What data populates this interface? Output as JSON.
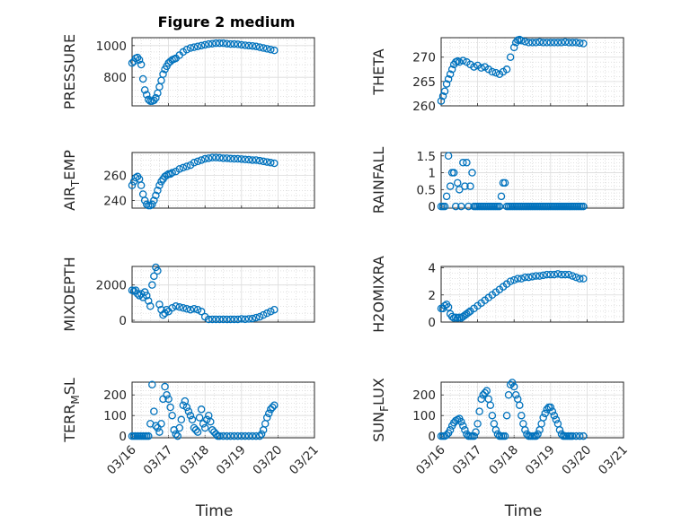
{
  "figure_title": "Figure 2 medium",
  "colors": {
    "series": "#0072bd",
    "axis": "#262626",
    "grid": "#dcdcdc"
  },
  "chart_data": [
    {
      "id": "pressure",
      "type": "scatter",
      "ylabel": "PRESSURE",
      "xlabel": "",
      "ylim": [
        620,
        1050
      ],
      "yticks": [
        800,
        1000
      ],
      "yticklabels": [
        "800",
        "1000"
      ],
      "xlim": [
        0,
        5
      ],
      "xticks": [
        0,
        1,
        2,
        3,
        4,
        5
      ],
      "xticklabels": [],
      "x": [
        0,
        0.05,
        0.1,
        0.15,
        0.2,
        0.25,
        0.3,
        0.35,
        0.4,
        0.45,
        0.5,
        0.55,
        0.6,
        0.65,
        0.7,
        0.75,
        0.8,
        0.85,
        0.9,
        0.95,
        1,
        1.05,
        1.1,
        1.15,
        1.2,
        1.3,
        1.4,
        1.5,
        1.6,
        1.7,
        1.8,
        1.9,
        2,
        2.1,
        2.2,
        2.3,
        2.4,
        2.5,
        2.6,
        2.7,
        2.8,
        2.9,
        3,
        3.1,
        3.2,
        3.3,
        3.4,
        3.5,
        3.6,
        3.7,
        3.8,
        3.9
      ],
      "values": [
        890,
        900,
        920,
        925,
        910,
        880,
        790,
        720,
        690,
        660,
        650,
        650,
        655,
        670,
        700,
        740,
        780,
        820,
        850,
        870,
        890,
        900,
        910,
        915,
        920,
        940,
        960,
        975,
        985,
        990,
        995,
        1000,
        1005,
        1010,
        1012,
        1015,
        1015,
        1015,
        1012,
        1010,
        1010,
        1008,
        1005,
        1002,
        1000,
        998,
        995,
        990,
        985,
        980,
        975,
        970
      ]
    },
    {
      "id": "theta",
      "type": "scatter",
      "ylabel": "THETA",
      "xlabel": "",
      "ylim": [
        260,
        274
      ],
      "yticks": [
        260,
        265,
        270
      ],
      "yticklabels": [
        "260",
        "265",
        "270"
      ],
      "xlim": [
        0,
        5
      ],
      "xticks": [
        0,
        1,
        2,
        3,
        4,
        5
      ],
      "xticklabels": [],
      "x": [
        0,
        0.05,
        0.1,
        0.15,
        0.2,
        0.25,
        0.3,
        0.35,
        0.4,
        0.45,
        0.5,
        0.6,
        0.7,
        0.8,
        0.9,
        1,
        1.1,
        1.2,
        1.3,
        1.4,
        1.5,
        1.6,
        1.7,
        1.8,
        1.9,
        2,
        2.05,
        2.1,
        2.15,
        2.2,
        2.3,
        2.4,
        2.5,
        2.6,
        2.7,
        2.8,
        2.9,
        3,
        3.1,
        3.2,
        3.3,
        3.4,
        3.5,
        3.6,
        3.7,
        3.8,
        3.9
      ],
      "values": [
        261,
        262,
        263,
        264.5,
        265.5,
        266.5,
        267.5,
        268.5,
        269,
        269.2,
        269,
        269.3,
        269,
        268.5,
        268,
        268.3,
        267.8,
        268,
        267.5,
        267,
        266.8,
        266.5,
        267,
        267.5,
        270,
        272,
        273,
        273.5,
        273.6,
        273.4,
        273.2,
        273,
        273,
        273,
        273.1,
        273,
        273,
        273,
        273,
        273,
        273,
        273.1,
        273,
        273,
        273,
        272.9,
        272.8
      ]
    },
    {
      "id": "air_temp",
      "type": "scatter",
      "ylabel": "AIR_TEMP",
      "ylabel_main": "AIR",
      "ylabel_sub": "T",
      "ylabel_rest": "EMP",
      "xlabel": "",
      "ylim": [
        234,
        278
      ],
      "yticks": [
        240,
        260
      ],
      "yticklabels": [
        "240",
        "260"
      ],
      "xlim": [
        0,
        5
      ],
      "xticks": [
        0,
        1,
        2,
        3,
        4,
        5
      ],
      "xticklabels": [],
      "x": [
        0,
        0.05,
        0.1,
        0.15,
        0.2,
        0.25,
        0.3,
        0.35,
        0.4,
        0.45,
        0.5,
        0.55,
        0.6,
        0.65,
        0.7,
        0.75,
        0.8,
        0.85,
        0.9,
        0.95,
        1,
        1.05,
        1.1,
        1.2,
        1.3,
        1.4,
        1.5,
        1.6,
        1.7,
        1.8,
        1.9,
        2,
        2.1,
        2.2,
        2.3,
        2.4,
        2.5,
        2.6,
        2.7,
        2.8,
        2.9,
        3,
        3.1,
        3.2,
        3.3,
        3.4,
        3.5,
        3.6,
        3.7,
        3.8,
        3.9
      ],
      "values": [
        252,
        255,
        258,
        259,
        257,
        252,
        245,
        240,
        237,
        236,
        236,
        237,
        240,
        244,
        248,
        252,
        255,
        257,
        259,
        260,
        261,
        261,
        262,
        263,
        265,
        266,
        267,
        268,
        270,
        271,
        272,
        273,
        273.5,
        274,
        274,
        273.8,
        273.5,
        273.5,
        273.2,
        273,
        273,
        272.8,
        272.5,
        272.3,
        272,
        272,
        271.5,
        271,
        270.5,
        270,
        269.5
      ]
    },
    {
      "id": "rainfall",
      "type": "scatter",
      "ylabel": "RAINFALL",
      "xlabel": "",
      "ylim": [
        -0.05,
        1.6
      ],
      "yticks": [
        0,
        0.5,
        1,
        1.5
      ],
      "yticklabels": [
        "0",
        "0.5",
        "1",
        "1.5"
      ],
      "xlim": [
        0,
        5
      ],
      "xticks": [
        0,
        1,
        2,
        3,
        4,
        5
      ],
      "xticklabels": [],
      "x": [
        0,
        0.05,
        0.1,
        0.15,
        0.2,
        0.25,
        0.3,
        0.35,
        0.4,
        0.45,
        0.5,
        0.55,
        0.6,
        0.65,
        0.7,
        0.75,
        0.8,
        0.85,
        0.9,
        0.95,
        1,
        1.05,
        1.1,
        1.15,
        1.2,
        1.25,
        1.3,
        1.35,
        1.4,
        1.45,
        1.5,
        1.55,
        1.6,
        1.65,
        1.7,
        1.75,
        1.8,
        1.85,
        1.9,
        1.95,
        2,
        2.05,
        2.1,
        2.15,
        2.2,
        2.25,
        2.3,
        2.35,
        2.4,
        2.45,
        2.5,
        2.55,
        2.6,
        2.65,
        2.7,
        2.75,
        2.8,
        2.85,
        2.9,
        2.95,
        3,
        3.05,
        3.1,
        3.15,
        3.2,
        3.25,
        3.3,
        3.35,
        3.4,
        3.45,
        3.5,
        3.55,
        3.6,
        3.65,
        3.7,
        3.75,
        3.8,
        3.85,
        3.9
      ],
      "values": [
        0,
        0,
        0,
        0.3,
        1.5,
        0.6,
        1.0,
        1.0,
        0,
        0.7,
        0.5,
        0,
        1.3,
        0.6,
        1.3,
        0,
        0.6,
        1.0,
        0,
        0,
        0,
        0,
        0,
        0,
        0,
        0,
        0,
        0,
        0,
        0,
        0,
        0,
        0,
        0.3,
        0.7,
        0.7,
        0,
        0,
        0,
        0,
        0,
        0,
        0,
        0,
        0,
        0,
        0,
        0,
        0,
        0,
        0,
        0,
        0,
        0,
        0,
        0,
        0,
        0,
        0,
        0,
        0,
        0,
        0,
        0,
        0,
        0,
        0,
        0,
        0,
        0,
        0,
        0,
        0,
        0,
        0,
        0,
        0,
        0,
        0
      ]
    },
    {
      "id": "mixdepth",
      "type": "scatter",
      "ylabel": "MIXDEPTH",
      "xlabel": "",
      "ylim": [
        -100,
        3050
      ],
      "yticks": [
        0,
        2000
      ],
      "yticklabels": [
        "0",
        "2000"
      ],
      "xlim": [
        0,
        5
      ],
      "xticks": [
        0,
        1,
        2,
        3,
        4,
        5
      ],
      "xticklabels": [],
      "x": [
        0,
        0.05,
        0.1,
        0.15,
        0.2,
        0.25,
        0.3,
        0.35,
        0.4,
        0.45,
        0.5,
        0.55,
        0.6,
        0.65,
        0.7,
        0.75,
        0.8,
        0.85,
        0.9,
        0.95,
        1,
        1.1,
        1.2,
        1.3,
        1.4,
        1.5,
        1.6,
        1.7,
        1.8,
        1.9,
        2,
        2.1,
        2.2,
        2.3,
        2.4,
        2.5,
        2.6,
        2.7,
        2.8,
        2.9,
        3,
        3.1,
        3.2,
        3.3,
        3.4,
        3.5,
        3.6,
        3.7,
        3.8,
        3.9
      ],
      "values": [
        1700,
        1650,
        1700,
        1500,
        1400,
        1500,
        1300,
        1600,
        1400,
        1100,
        800,
        2000,
        2500,
        3000,
        2800,
        900,
        600,
        300,
        400,
        600,
        500,
        700,
        800,
        750,
        700,
        650,
        600,
        650,
        600,
        500,
        200,
        50,
        50,
        50,
        50,
        50,
        50,
        50,
        50,
        50,
        80,
        60,
        80,
        100,
        150,
        200,
        300,
        400,
        500,
        600
      ]
    },
    {
      "id": "h2omixra",
      "type": "scatter",
      "ylabel": "H2OMIXRA",
      "xlabel": "",
      "ylim": [
        0,
        4.1
      ],
      "yticks": [
        0,
        2,
        4
      ],
      "yticklabels": [
        "0",
        "2",
        "4"
      ],
      "xlim": [
        0,
        5
      ],
      "xticks": [
        0,
        1,
        2,
        3,
        4,
        5
      ],
      "xticklabels": [],
      "x": [
        0,
        0.05,
        0.1,
        0.15,
        0.2,
        0.25,
        0.3,
        0.35,
        0.4,
        0.45,
        0.5,
        0.55,
        0.6,
        0.65,
        0.7,
        0.75,
        0.8,
        0.9,
        1,
        1.1,
        1.2,
        1.3,
        1.4,
        1.5,
        1.6,
        1.7,
        1.8,
        1.9,
        2,
        2.1,
        2.2,
        2.3,
        2.4,
        2.5,
        2.6,
        2.7,
        2.8,
        2.9,
        3,
        3.1,
        3.2,
        3.3,
        3.4,
        3.5,
        3.6,
        3.7,
        3.8,
        3.9
      ],
      "values": [
        1.0,
        1.0,
        1.2,
        1.3,
        1.1,
        0.6,
        0.4,
        0.3,
        0.35,
        0.3,
        0.35,
        0.3,
        0.4,
        0.5,
        0.6,
        0.7,
        0.8,
        1.0,
        1.2,
        1.4,
        1.6,
        1.8,
        2.0,
        2.2,
        2.4,
        2.6,
        2.8,
        3.0,
        3.1,
        3.2,
        3.2,
        3.3,
        3.3,
        3.35,
        3.4,
        3.4,
        3.45,
        3.5,
        3.5,
        3.5,
        3.55,
        3.5,
        3.5,
        3.5,
        3.4,
        3.3,
        3.2,
        3.2
      ]
    },
    {
      "id": "terr_msl",
      "type": "scatter",
      "ylabel": "TERR_MSL",
      "ylabel_main": "TERR",
      "ylabel_sub": "M",
      "ylabel_rest": "SL",
      "xlabel": "Time",
      "ylim": [
        -8,
        262
      ],
      "yticks": [
        0,
        100,
        200
      ],
      "yticklabels": [
        "0",
        "100",
        "200"
      ],
      "xlim": [
        0,
        5
      ],
      "xticks": [
        0,
        1,
        2,
        3,
        4,
        5
      ],
      "xticklabels": [
        "03/16",
        "03/17",
        "03/18",
        "03/19",
        "03/20",
        "03/21"
      ],
      "x": [
        0,
        0.05,
        0.1,
        0.15,
        0.2,
        0.25,
        0.3,
        0.35,
        0.4,
        0.45,
        0.5,
        0.55,
        0.6,
        0.65,
        0.7,
        0.75,
        0.8,
        0.85,
        0.9,
        0.95,
        1,
        1.05,
        1.1,
        1.15,
        1.2,
        1.25,
        1.3,
        1.35,
        1.4,
        1.45,
        1.5,
        1.55,
        1.6,
        1.65,
        1.7,
        1.75,
        1.8,
        1.85,
        1.9,
        1.95,
        2,
        2.05,
        2.1,
        2.15,
        2.2,
        2.25,
        2.3,
        2.35,
        2.4,
        2.5,
        2.6,
        2.7,
        2.8,
        2.9,
        3,
        3.1,
        3.2,
        3.3,
        3.4,
        3.5,
        3.55,
        3.6,
        3.65,
        3.7,
        3.75,
        3.8,
        3.85,
        3.9
      ],
      "values": [
        0,
        0,
        0,
        0,
        0,
        0,
        0,
        0,
        0,
        0,
        60,
        250,
        120,
        50,
        40,
        20,
        60,
        180,
        240,
        200,
        180,
        140,
        100,
        30,
        10,
        0,
        40,
        80,
        150,
        170,
        140,
        120,
        100,
        80,
        40,
        30,
        20,
        90,
        130,
        60,
        40,
        80,
        100,
        70,
        30,
        20,
        10,
        0,
        0,
        0,
        0,
        0,
        0,
        0,
        0,
        0,
        0,
        0,
        0,
        0,
        10,
        30,
        60,
        90,
        110,
        130,
        140,
        150
      ]
    },
    {
      "id": "sun_flux",
      "type": "scatter",
      "ylabel": "SUN_FLUX",
      "ylabel_main": "SUN",
      "ylabel_sub": "F",
      "ylabel_rest": "LUX",
      "xlabel": "Time",
      "ylim": [
        -8,
        262
      ],
      "yticks": [
        0,
        100,
        200
      ],
      "yticklabels": [
        "0",
        "100",
        "200"
      ],
      "xlim": [
        0,
        5
      ],
      "xticks": [
        0,
        1,
        2,
        3,
        4,
        5
      ],
      "xticklabels": [
        "03/16",
        "03/17",
        "03/18",
        "03/19",
        "03/20",
        "03/21"
      ],
      "x": [
        0,
        0.05,
        0.1,
        0.15,
        0.2,
        0.25,
        0.3,
        0.35,
        0.4,
        0.45,
        0.5,
        0.55,
        0.6,
        0.65,
        0.7,
        0.75,
        0.8,
        0.85,
        0.9,
        0.95,
        1,
        1.05,
        1.1,
        1.15,
        1.2,
        1.25,
        1.3,
        1.35,
        1.4,
        1.45,
        1.5,
        1.55,
        1.6,
        1.65,
        1.7,
        1.75,
        1.8,
        1.85,
        1.9,
        1.95,
        2,
        2.05,
        2.1,
        2.15,
        2.2,
        2.25,
        2.3,
        2.35,
        2.4,
        2.45,
        2.5,
        2.55,
        2.6,
        2.65,
        2.7,
        2.75,
        2.8,
        2.85,
        2.9,
        2.95,
        3,
        3.05,
        3.1,
        3.15,
        3.2,
        3.25,
        3.3,
        3.35,
        3.4,
        3.45,
        3.5,
        3.55,
        3.6,
        3.7,
        3.8,
        3.9
      ],
      "values": [
        0,
        0,
        0,
        5,
        15,
        30,
        50,
        65,
        75,
        80,
        85,
        70,
        50,
        30,
        10,
        0,
        0,
        0,
        0,
        20,
        60,
        120,
        180,
        200,
        210,
        220,
        180,
        150,
        100,
        60,
        30,
        10,
        0,
        0,
        0,
        0,
        100,
        200,
        250,
        260,
        240,
        200,
        180,
        150,
        100,
        60,
        30,
        10,
        0,
        0,
        0,
        0,
        0,
        10,
        30,
        60,
        90,
        110,
        130,
        140,
        140,
        120,
        100,
        80,
        60,
        30,
        10,
        0,
        0,
        0,
        0,
        0,
        0,
        0,
        0,
        0
      ]
    }
  ]
}
